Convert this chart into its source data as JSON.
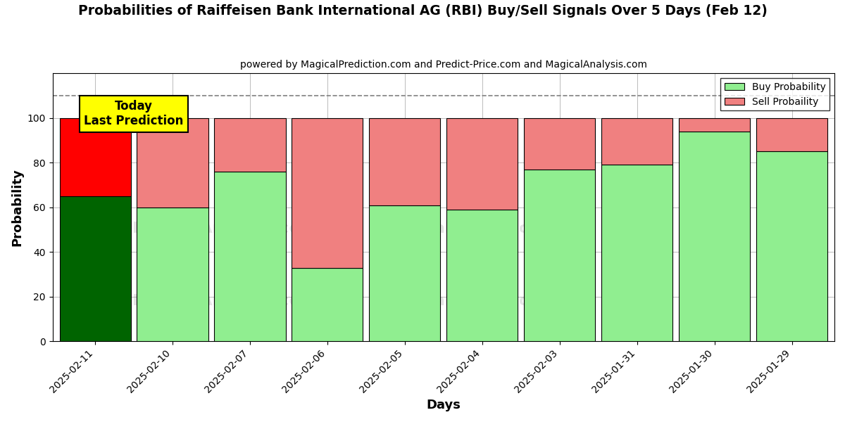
{
  "title": "Probabilities of Raiffeisen Bank International AG (RBI) Buy/Sell Signals Over 5 Days (Feb 12)",
  "subtitle": "powered by MagicalPrediction.com and Predict-Price.com and MagicalAnalysis.com",
  "xlabel": "Days",
  "ylabel": "Probability",
  "dates": [
    "2025-02-11",
    "2025-02-10",
    "2025-02-07",
    "2025-02-06",
    "2025-02-05",
    "2025-02-04",
    "2025-02-03",
    "2025-01-31",
    "2025-01-30",
    "2025-01-29"
  ],
  "buy_values": [
    65,
    60,
    76,
    33,
    61,
    59,
    77,
    79,
    94,
    85
  ],
  "sell_values": [
    35,
    40,
    24,
    67,
    39,
    41,
    23,
    21,
    6,
    15
  ],
  "today_buy_color": "#006400",
  "today_sell_color": "#ff0000",
  "buy_color": "#90EE90",
  "sell_color": "#F08080",
  "today_label_bg": "#ffff00",
  "today_label_text": "Today\nLast Prediction",
  "legend_buy": "Buy Probability",
  "legend_sell": "Sell Probaility",
  "dashed_line_y": 110,
  "ylim": [
    0,
    120
  ],
  "yticks": [
    0,
    20,
    40,
    60,
    80,
    100
  ],
  "background_color": "#ffffff",
  "grid_color": "#bbbbbb"
}
